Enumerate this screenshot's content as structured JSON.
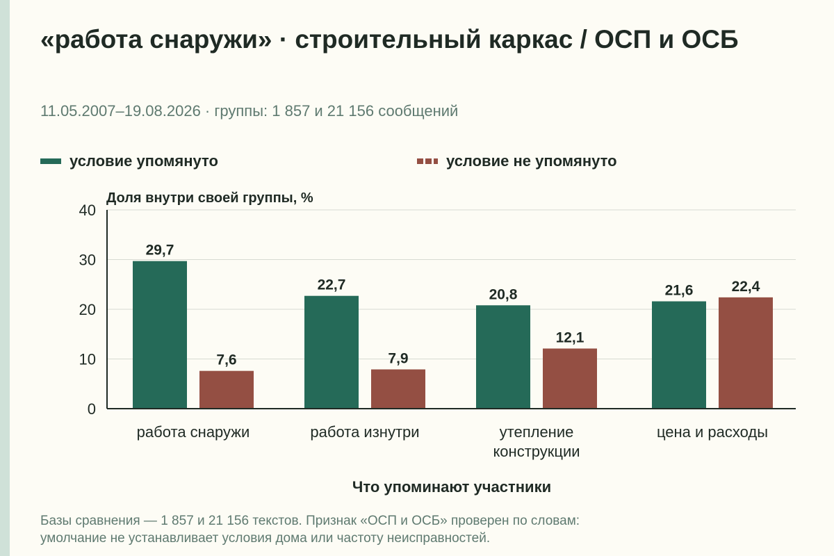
{
  "title": "«работа снаружи» · строительный каркас / ОСП и ОСБ",
  "subtitle": "11.05.2007–19.08.2026 · группы: 1 857 и 21 156 сообщений",
  "footnote": {
    "line1": "Базы сравнения — 1 857 и 21 156 текстов. Признак «ОСП и ОСБ» проверен по словам:",
    "line2": "умолчание не устанавливает условия дома или частоту неисправностей."
  },
  "colors": {
    "series_0": "#256a58",
    "series_1": "#944f43",
    "axis": "#1f2a24",
    "grid": "#d7dad2",
    "text": "#1f2a24"
  },
  "chart_data": {
    "type": "bar",
    "ylabel": "Доля внутри своей группы, %",
    "xlabel": "Что упоминают участники",
    "ylim": [
      0,
      40
    ],
    "yticks": [
      "0",
      "10",
      "20",
      "30",
      "40"
    ],
    "grid": true,
    "legend_position": "top",
    "categories": [
      [
        "работа снаружи"
      ],
      [
        "работа изнутри"
      ],
      [
        "утепление",
        "конструкции"
      ],
      [
        "цена и расходы"
      ]
    ],
    "series": [
      {
        "name": "условие упомянуто",
        "values": [
          29.7,
          22.7,
          20.8,
          21.6
        ],
        "labels": [
          "29,7",
          "22,7",
          "20,8",
          "21,6"
        ]
      },
      {
        "name": "условие не упомянуто",
        "values": [
          7.6,
          7.9,
          12.1,
          22.4
        ],
        "labels": [
          "7,6",
          "7,9",
          "12,1",
          "22,4"
        ]
      }
    ]
  }
}
